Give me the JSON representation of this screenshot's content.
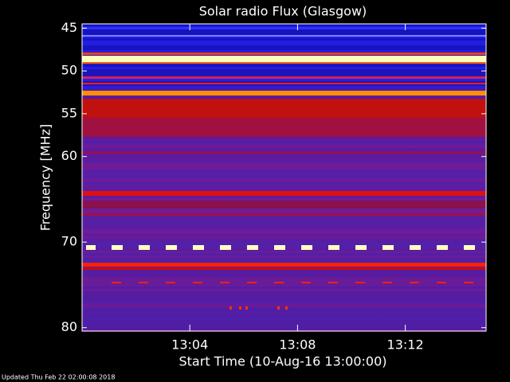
{
  "chart_data": {
    "type": "spectrogram",
    "title": "Solar radio Flux (Glasgow)",
    "x_label": "Start Time (10-Aug-16 13:00:00)",
    "y_label": "Frequency [MHz]",
    "xlim": [
      0,
      15
    ],
    "xticks": [
      {
        "value": 4,
        "label": "13:04"
      },
      {
        "value": 8,
        "label": "13:08"
      },
      {
        "value": 12,
        "label": "13:12"
      }
    ],
    "ylim": [
      80.4,
      44.5
    ],
    "yticks": [
      45,
      50,
      55,
      60,
      70,
      80
    ],
    "footer": "Updated Thu Feb 22 02:00:08 2018"
  }
}
